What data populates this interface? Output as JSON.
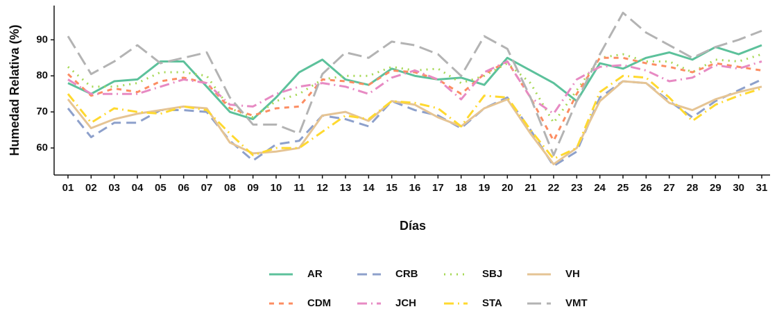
{
  "chart_data": {
    "type": "line",
    "y_label": "Humedad Relativa (%)",
    "x_label": "Días",
    "categories": [
      "01",
      "02",
      "03",
      "04",
      "05",
      "06",
      "07",
      "08",
      "09",
      "10",
      "11",
      "12",
      "13",
      "14",
      "15",
      "16",
      "17",
      "18",
      "19",
      "20",
      "21",
      "22",
      "23",
      "24",
      "25",
      "26",
      "27",
      "28",
      "29",
      "30",
      "31"
    ],
    "ylim": [
      52.5,
      99.5
    ],
    "yticks": [
      60,
      70,
      80,
      90
    ],
    "grid": false,
    "series": [
      {
        "name": "AR",
        "color": "#5cc19b",
        "line_style": "solid",
        "values": [
          78,
          75,
          78.5,
          79,
          84,
          84,
          77,
          70,
          68,
          74,
          81,
          84.5,
          79,
          77.5,
          82,
          80,
          79,
          79.5,
          77.5,
          85,
          81.5,
          78,
          73,
          83.5,
          82,
          85,
          86.5,
          84.5,
          88,
          86,
          88.5
        ]
      },
      {
        "name": "CRB",
        "color": "#8da0cb",
        "line_style": "dashed",
        "values": [
          71,
          63,
          67,
          67,
          70.5,
          70.5,
          70,
          62,
          56.5,
          61,
          62,
          69,
          68,
          66,
          73,
          70.5,
          69,
          65.5,
          71,
          74,
          65,
          55,
          59,
          74,
          78.5,
          78,
          73,
          68.5,
          73,
          76,
          79
        ]
      },
      {
        "name": "SBJ",
        "color": "#a6d854",
        "line_style": "dotted",
        "values": [
          82.5,
          77,
          77,
          78,
          81,
          81,
          80,
          71,
          68.5,
          73,
          75,
          79,
          80,
          80,
          82.5,
          81.5,
          82,
          78,
          80,
          83.5,
          78,
          67,
          76,
          85,
          86,
          84,
          84,
          81,
          84.5,
          84,
          86
        ]
      },
      {
        "name": "VH",
        "color": "#e5c494",
        "line_style": "solid",
        "values": [
          73.5,
          65.5,
          68,
          69.5,
          70.5,
          71.5,
          71,
          61.5,
          58.5,
          59,
          60,
          69,
          70,
          67.5,
          73,
          72,
          68.5,
          66,
          71,
          73.5,
          64,
          55.5,
          60,
          73,
          78.5,
          78,
          72.5,
          70.5,
          73.5,
          75.5,
          77
        ]
      },
      {
        "name": "CDM",
        "color": "#fc8d62",
        "line_style": "short-dash",
        "values": [
          80.5,
          74.5,
          76.5,
          75.5,
          78.5,
          79.5,
          78,
          71,
          69,
          71,
          71.5,
          79,
          78.5,
          77.5,
          81.5,
          81,
          79,
          75,
          80.5,
          84,
          74,
          62,
          75,
          85,
          85,
          83.5,
          82.5,
          81,
          83.5,
          82.5,
          81.5
        ]
      },
      {
        "name": "JCH",
        "color": "#e78ac3",
        "line_style": "dash-dot",
        "values": [
          79,
          75,
          75,
          75,
          77,
          79,
          78,
          72,
          71.5,
          75,
          77,
          78,
          77,
          75,
          79.5,
          81.5,
          79,
          73.5,
          81,
          84,
          74,
          69.5,
          79,
          82.5,
          83,
          81.5,
          78.5,
          79.5,
          83,
          82,
          84
        ]
      },
      {
        "name": "STA",
        "color": "#ffd92f",
        "line_style": "dash-dot",
        "values": [
          75,
          67,
          71,
          70,
          69.5,
          71.5,
          70.5,
          64,
          58,
          60,
          60,
          64.5,
          69,
          68,
          73,
          72.5,
          71,
          66,
          74.5,
          74,
          65,
          57,
          60,
          75.5,
          80,
          79.5,
          74,
          67.5,
          72,
          74.5,
          76.5
        ]
      },
      {
        "name": "VMT",
        "color": "#b3b3b3",
        "line_style": "long-dash",
        "values": [
          91,
          80.5,
          84,
          88.5,
          83.5,
          85,
          86.5,
          74,
          66.5,
          66.5,
          64,
          80.5,
          86.5,
          85,
          89.5,
          88.5,
          86,
          80,
          91,
          87.5,
          74,
          58,
          73,
          86,
          97.5,
          92,
          88.5,
          85,
          88,
          90,
          92.5
        ]
      }
    ]
  }
}
